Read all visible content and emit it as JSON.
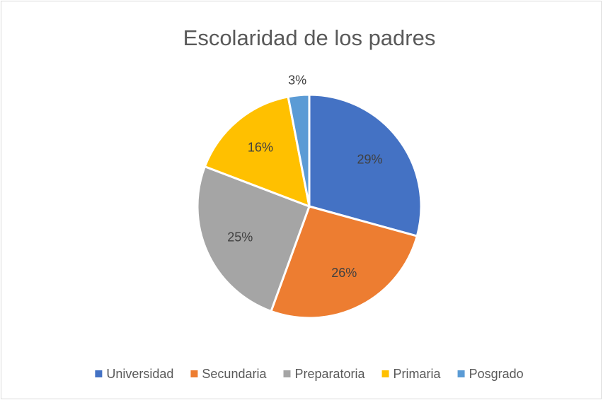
{
  "chart_data": {
    "type": "pie",
    "title": "Escolaridad de los padres",
    "categories": [
      "Universidad",
      "Secundaria",
      "Preparatoria",
      "Primaria",
      "Posgrado"
    ],
    "values": [
      29,
      26,
      25,
      16,
      3
    ],
    "value_labels": [
      "29%",
      "26%",
      "25%",
      "16%",
      "3%"
    ],
    "colors": [
      "#4472c4",
      "#ed7d31",
      "#a5a5a5",
      "#ffc000",
      "#5b9bd5"
    ],
    "legend": "bottom"
  }
}
